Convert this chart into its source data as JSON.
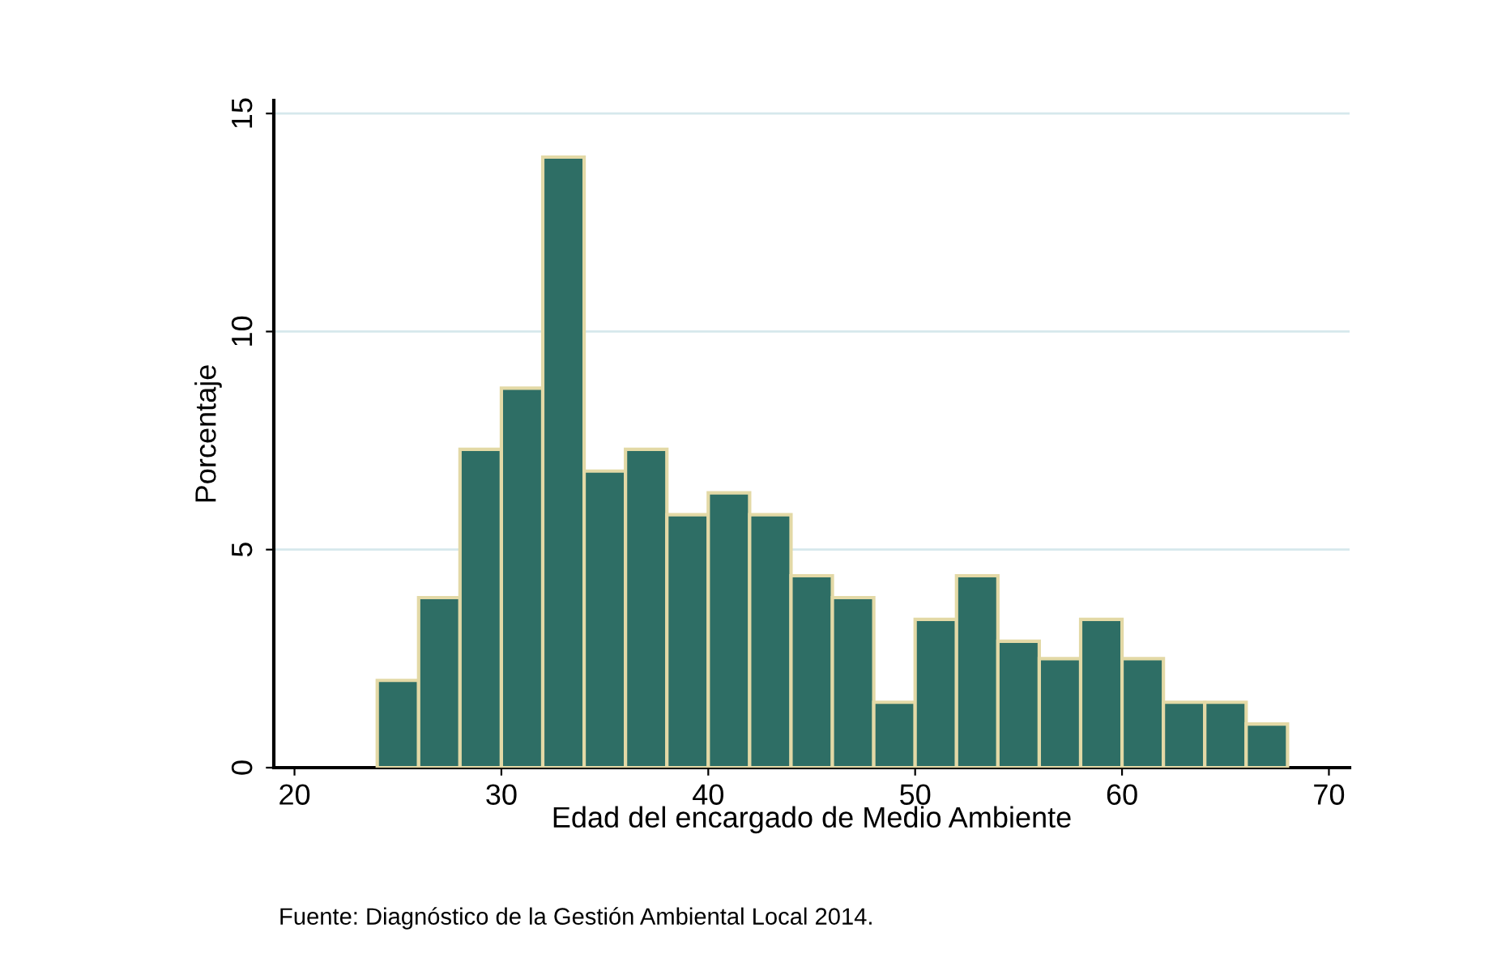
{
  "chart_data": {
    "type": "histogram",
    "xlabel": "Edad del encargado de Medio Ambiente",
    "ylabel": "Porcentaje",
    "bins": [
      24,
      26,
      28,
      30,
      32,
      34,
      36,
      38,
      40,
      42,
      44,
      46,
      48,
      50,
      52,
      54,
      56,
      58,
      60,
      62,
      64,
      66,
      68
    ],
    "values": [
      2,
      3.9,
      7.3,
      8.7,
      14,
      6.8,
      7.3,
      5.8,
      6.3,
      5.8,
      4.4,
      3.9,
      1.5,
      3.4,
      4.4,
      2.9,
      2.5,
      3.4,
      2.5,
      1.5,
      1.5,
      1.0
    ],
    "color": "#2e6e65",
    "xlim": [
      19,
      71
    ],
    "xticks": [
      20,
      30,
      40,
      50,
      60,
      70
    ],
    "ylim": [
      0,
      15.3
    ],
    "yticks": [
      0,
      5,
      10,
      15
    ],
    "grid": "y",
    "annotations": [
      "Fuente: Diagnóstico de la Gestión Ambiental Local 2014."
    ]
  }
}
